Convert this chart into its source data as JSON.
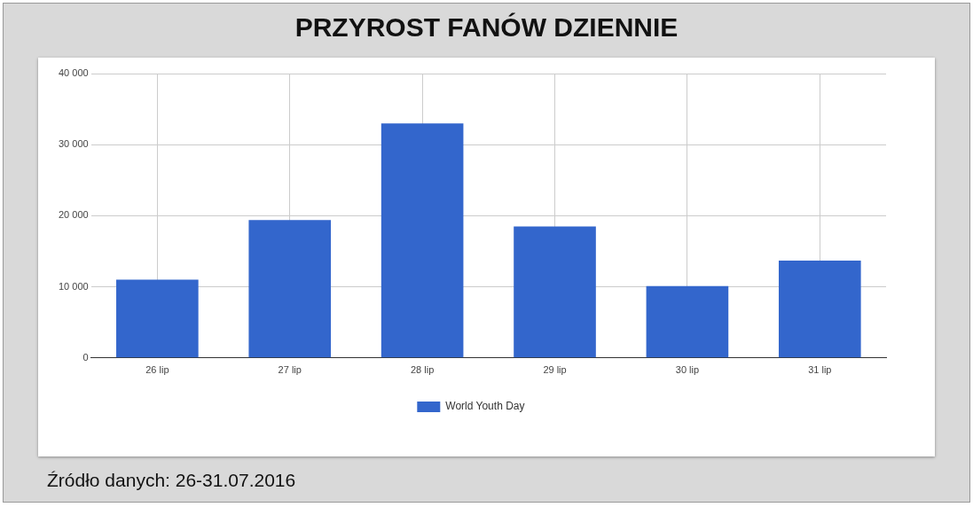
{
  "chart_data": {
    "type": "bar",
    "title": "PRZYROST FANÓW DZIENNIE",
    "categories": [
      "26 lip",
      "27 lip",
      "28 lip",
      "29 lip",
      "30 lip",
      "31 lip"
    ],
    "series": [
      {
        "name": "World Youth Day",
        "color": "#3366cc",
        "values": [
          11000,
          19400,
          33000,
          18500,
          10100,
          13700
        ]
      }
    ],
    "ylim": [
      0,
      40000
    ],
    "yticks": [
      {
        "value": 0,
        "label": "0"
      },
      {
        "value": 10000,
        "label": "10 000"
      },
      {
        "value": 20000,
        "label": "20 000"
      },
      {
        "value": 30000,
        "label": "30 000"
      },
      {
        "value": 40000,
        "label": "40 000"
      }
    ],
    "grid": true,
    "legend": "bottom",
    "annotations": [
      "Źródło danych: 26-31.07.2016"
    ]
  }
}
